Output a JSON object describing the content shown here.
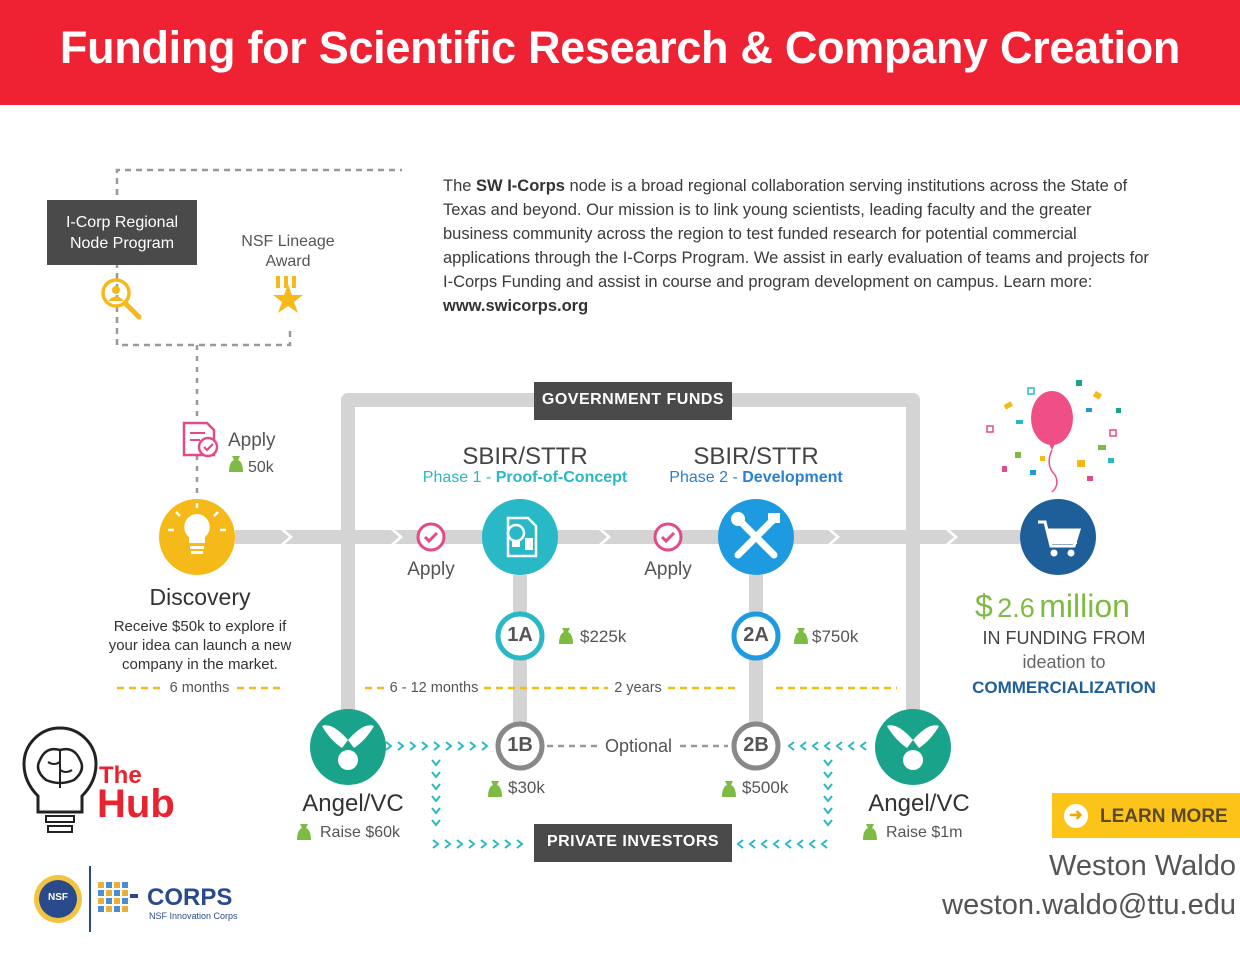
{
  "banner": {
    "title": "Funding for Scientific Research & Company Creation"
  },
  "intro": {
    "text_1": "The ",
    "brand": "SW I-Corps",
    "text_2": " node is a broad regional collaboration serving institutions across the State of Texas and beyond. Our mission is to link young scientists, leading faculty and the greater business community across the region to test funded research for potential commercial applications through the I-Corps Program. We assist in early evaluation of teams and projects for I-Corps Funding and assist in course and program development on campus.  Learn more: ",
    "link": "www.swicorps.org"
  },
  "node_program": {
    "line1": "I-Corp Regional",
    "line2": "Node Program"
  },
  "nsf_award": {
    "line1": "NSF Lineage",
    "line2": "Award"
  },
  "apply_first": {
    "label": "Apply",
    "amount": "50k"
  },
  "discovery": {
    "title": "Discovery",
    "line1": "Receive $50k to explore if",
    "line2": "your idea can launch a new",
    "line3": "company in the market.",
    "duration": "6 months"
  },
  "government": {
    "label": "GOVERNMENT FUNDS"
  },
  "private": {
    "label": "PRIVATE INVESTORS"
  },
  "phase1": {
    "title": "SBIR/STTR",
    "phase_prefix": "Phase 1 - ",
    "phase_name": "Proof-of-Concept",
    "apply": "Apply",
    "step_a": "1A",
    "amount_a": "$225k",
    "step_b": "1B",
    "amount_b": "$30k",
    "duration": "6 - 12 months"
  },
  "phase2": {
    "title": "SBIR/STTR",
    "phase_prefix": "Phase 2 - ",
    "phase_name": "Development",
    "apply": "Apply",
    "step_a": "2A",
    "amount_a": "$750k",
    "step_b": "2B",
    "amount_b": "$500k",
    "duration": "2 years"
  },
  "optional": {
    "label": "Optional"
  },
  "angel_left": {
    "title": "Angel/VC",
    "raise": "Raise $60k"
  },
  "angel_right": {
    "title": "Angel/VC",
    "raise": "Raise $1m"
  },
  "summary": {
    "currency": "$",
    "amount": "2.6",
    "unit": "million",
    "line2": "IN FUNDING FROM",
    "line3": "ideation to",
    "line4": "COMMERCIALIZATION"
  },
  "learn_more": {
    "label": "LEARN MORE"
  },
  "hub_logo": {
    "the": "The",
    "hub": "Hub"
  },
  "nsf_logo": {
    "nsf": "NSF",
    "corps": "CORPS",
    "sub": "NSF Innovation Corps"
  },
  "contact": {
    "name": "Weston Waldo",
    "email": "weston.waldo@ttu.edu"
  },
  "colors": {
    "banner": "#ee2233",
    "teal": "#29b8c6",
    "blue": "#2a7fd0",
    "yellow": "#f5b919",
    "pink": "#e14b8a",
    "green": "#7dbb42",
    "track": "#d4d4d4",
    "dark_navy": "#1f5f99"
  }
}
